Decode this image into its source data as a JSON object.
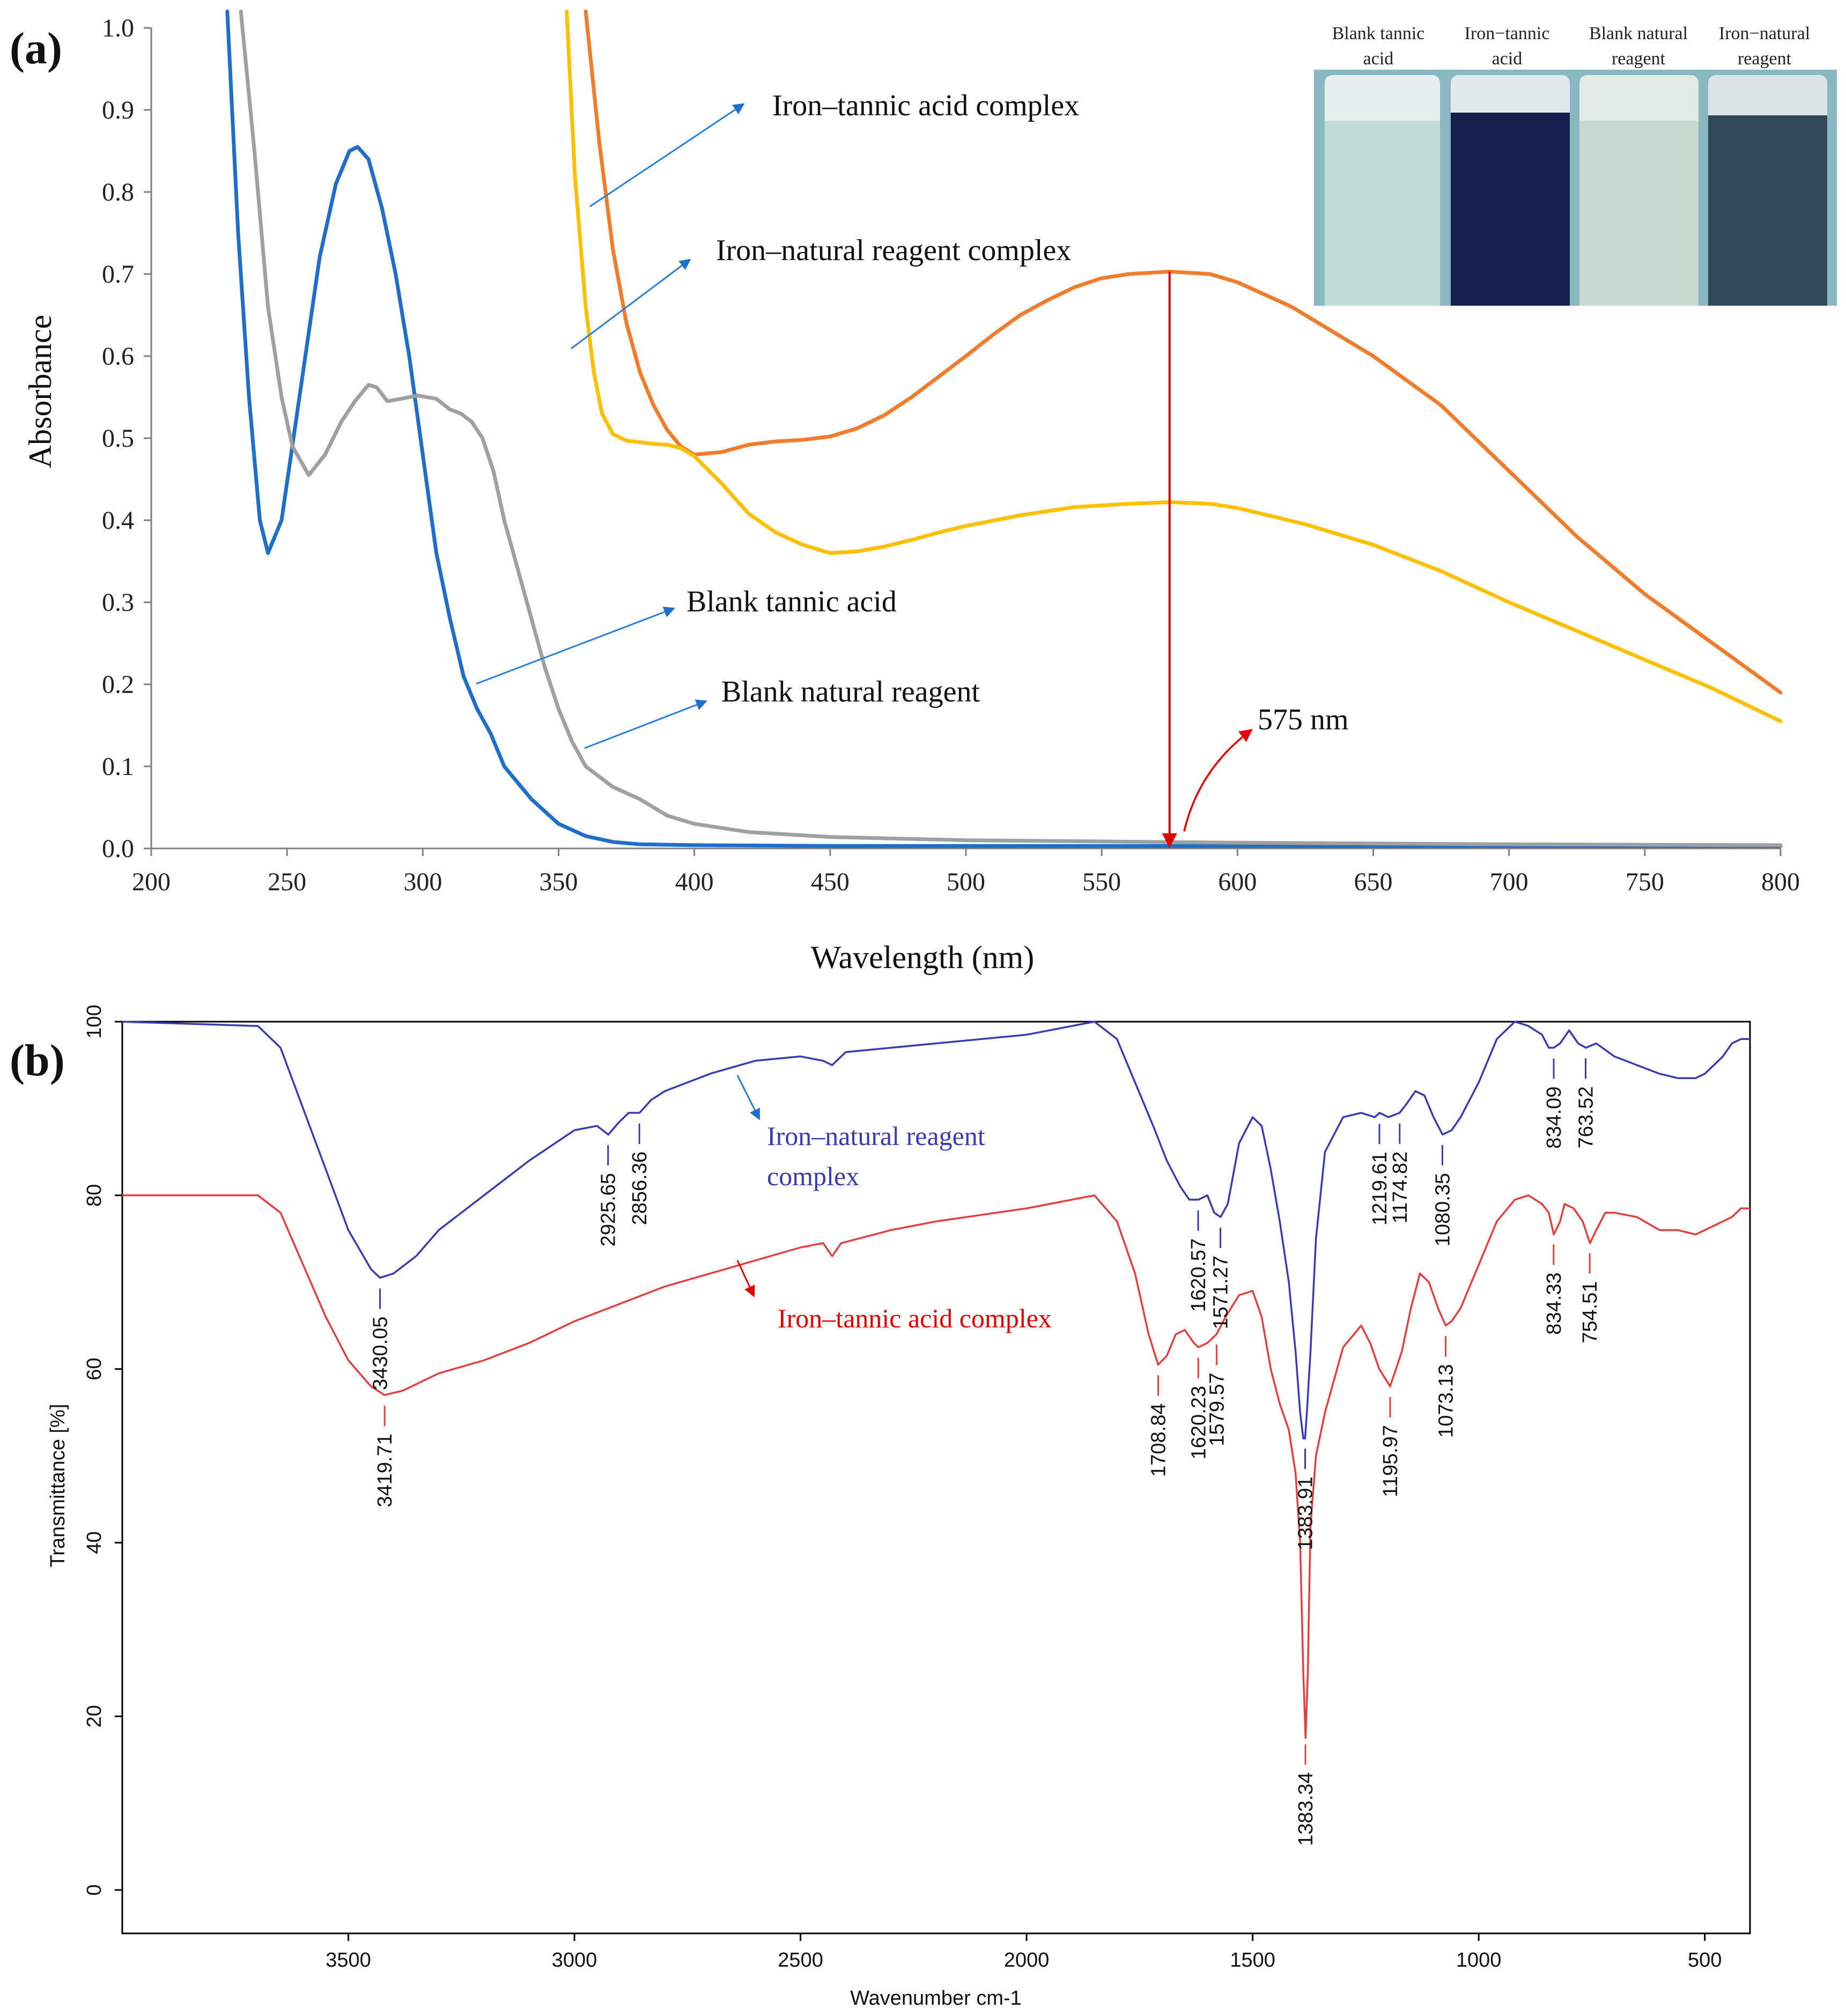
{
  "chart_data": [
    {
      "panel": "(a)",
      "type": "line",
      "xlabel": "Wavelength (nm)",
      "ylabel": "Absorbance",
      "xlim": [
        200,
        800
      ],
      "ylim": [
        0,
        1.0
      ],
      "xticks": [
        "200",
        "250",
        "300",
        "350",
        "400",
        "450",
        "500",
        "550",
        "600",
        "650",
        "700",
        "750",
        "800"
      ],
      "yticks": [
        "0.0",
        "0.1",
        "0.2",
        "0.3",
        "0.4",
        "0.5",
        "0.6",
        "0.7",
        "0.8",
        "0.9",
        "1.0"
      ],
      "series": [
        {
          "name": "Blank tannic acid",
          "color": "#1f6fc8",
          "x": [
            228,
            232,
            236,
            240,
            243,
            248,
            255,
            262,
            268,
            273,
            276,
            280,
            285,
            290,
            295,
            300,
            305,
            310,
            315,
            320,
            325,
            330,
            340,
            350,
            360,
            370,
            380,
            400,
            450,
            500,
            600,
            700,
            800
          ],
          "y": [
            1.02,
            0.75,
            0.55,
            0.4,
            0.36,
            0.4,
            0.56,
            0.72,
            0.81,
            0.85,
            0.855,
            0.84,
            0.78,
            0.7,
            0.6,
            0.48,
            0.36,
            0.28,
            0.21,
            0.17,
            0.14,
            0.1,
            0.06,
            0.03,
            0.015,
            0.008,
            0.005,
            0.004,
            0.003,
            0.003,
            0.003,
            0.003,
            0.003
          ]
        },
        {
          "name": "Blank natural reagent",
          "color": "#a0a0a0",
          "x": [
            233,
            238,
            243,
            248,
            252,
            258,
            264,
            270,
            275,
            280,
            283,
            287,
            292,
            298,
            305,
            310,
            314,
            318,
            322,
            326,
            330,
            335,
            340,
            345,
            350,
            355,
            360,
            370,
            380,
            390,
            400,
            420,
            450,
            500,
            600,
            700,
            800
          ],
          "y": [
            1.02,
            0.85,
            0.66,
            0.55,
            0.49,
            0.455,
            0.48,
            0.52,
            0.545,
            0.565,
            0.562,
            0.545,
            0.548,
            0.552,
            0.548,
            0.535,
            0.53,
            0.52,
            0.5,
            0.46,
            0.4,
            0.34,
            0.28,
            0.22,
            0.17,
            0.13,
            0.1,
            0.075,
            0.06,
            0.04,
            0.03,
            0.02,
            0.014,
            0.01,
            0.007,
            0.005,
            0.004
          ]
        },
        {
          "name": "Iron–tannic acid complex",
          "color": "#f07d2d",
          "x": [
            360,
            365,
            370,
            375,
            380,
            385,
            390,
            395,
            400,
            410,
            420,
            430,
            440,
            450,
            460,
            470,
            480,
            490,
            500,
            510,
            520,
            530,
            540,
            550,
            560,
            575,
            590,
            600,
            620,
            650,
            675,
            700,
            725,
            750,
            775,
            800
          ],
          "y": [
            1.02,
            0.86,
            0.73,
            0.64,
            0.58,
            0.54,
            0.51,
            0.49,
            0.48,
            0.483,
            0.492,
            0.496,
            0.498,
            0.502,
            0.512,
            0.528,
            0.55,
            0.575,
            0.6,
            0.626,
            0.65,
            0.668,
            0.684,
            0.695,
            0.7,
            0.703,
            0.7,
            0.69,
            0.66,
            0.6,
            0.54,
            0.46,
            0.38,
            0.31,
            0.25,
            0.19
          ]
        },
        {
          "name": "Iron–natural reagent complex",
          "color": "#ffc000",
          "x": [
            353,
            356,
            360,
            363,
            366,
            370,
            375,
            380,
            385,
            390,
            395,
            400,
            410,
            420,
            430,
            440,
            450,
            460,
            470,
            480,
            490,
            500,
            520,
            540,
            560,
            575,
            590,
            600,
            625,
            650,
            675,
            700,
            725,
            750,
            775,
            800
          ],
          "y": [
            1.02,
            0.82,
            0.66,
            0.58,
            0.53,
            0.505,
            0.497,
            0.495,
            0.493,
            0.492,
            0.488,
            0.478,
            0.445,
            0.408,
            0.385,
            0.37,
            0.36,
            0.362,
            0.368,
            0.376,
            0.385,
            0.393,
            0.406,
            0.416,
            0.42,
            0.422,
            0.42,
            0.415,
            0.395,
            0.37,
            0.338,
            0.3,
            0.265,
            0.23,
            0.195,
            0.155
          ]
        }
      ],
      "annotations": [
        "Iron–tannic acid complex",
        "Iron–natural reagent complex",
        "Blank tannic acid",
        "Blank natural reagent",
        "575 nm"
      ],
      "marker": {
        "wavelength": 575,
        "label": "575 nm"
      },
      "inset": {
        "labels": [
          "Blank tannic acid",
          "Iron−tannic acid",
          "Blank natural reagent",
          "Iron−natural reagent"
        ],
        "vial_colors": [
          "#b9d6d3",
          "#161e4c",
          "#c6d9cc",
          "#2f4452"
        ]
      }
    },
    {
      "panel": "(b)",
      "type": "line",
      "xlabel": "Wavenumber cm-1",
      "ylabel": "Transmittance [%]",
      "xlim": [
        4000,
        400
      ],
      "ylim": [
        -5,
        100
      ],
      "xticks": [
        "3500",
        "3000",
        "2500",
        "2000",
        "1500",
        "1000",
        "500"
      ],
      "yticks": [
        "0",
        "20",
        "40",
        "60",
        "80",
        "100"
      ],
      "series": [
        {
          "name": "Iron–natural reagent complex",
          "color": "#3b3bb0",
          "x": [
            4000,
            3700,
            3650,
            3600,
            3550,
            3500,
            3450,
            3430,
            3400,
            3350,
            3300,
            3200,
            3100,
            3000,
            2950,
            2925,
            2900,
            2880,
            2856,
            2830,
            2800,
            2700,
            2600,
            2500,
            2450,
            2430,
            2400,
            2300,
            2200,
            2000,
            1850,
            1800,
            1760,
            1720,
            1690,
            1660,
            1640,
            1620,
            1600,
            1585,
            1571,
            1555,
            1530,
            1500,
            1480,
            1460,
            1440,
            1420,
            1405,
            1395,
            1388,
            1384,
            1380,
            1372,
            1360,
            1340,
            1300,
            1260,
            1230,
            1219,
            1200,
            1175,
            1160,
            1140,
            1120,
            1100,
            1080,
            1060,
            1040,
            1000,
            960,
            920,
            890,
            860,
            845,
            834,
            820,
            800,
            780,
            763,
            740,
            700,
            650,
            600,
            560,
            520,
            500,
            480,
            460,
            440,
            420,
            400
          ],
          "y": [
            100,
            99.5,
            97,
            90,
            83,
            76,
            71.5,
            70.5,
            71,
            73,
            76,
            80,
            84,
            87.5,
            88,
            87,
            88.5,
            89.5,
            89.5,
            91,
            92,
            94,
            95.5,
            96,
            95.5,
            95,
            96.5,
            97,
            97.5,
            98.5,
            100,
            98,
            93,
            88,
            84,
            81,
            79.5,
            79.5,
            80,
            78,
            77.5,
            79,
            86,
            89,
            88,
            83,
            77,
            70,
            62,
            55,
            52,
            52,
            55,
            62,
            75,
            85,
            89,
            89.5,
            89,
            89.5,
            89,
            89.5,
            90.5,
            92,
            91.5,
            89,
            87,
            87.5,
            89,
            93,
            98,
            100,
            99.5,
            98.5,
            97,
            97,
            97.5,
            99,
            97.5,
            97,
            97.5,
            96,
            95,
            94,
            93.5,
            93.5,
            94,
            95,
            96,
            97.5,
            98,
            98
          ]
        },
        {
          "name": "Iron–tannic acid complex",
          "color": "#e24040",
          "x": [
            4000,
            3700,
            3650,
            3600,
            3550,
            3500,
            3450,
            3420,
            3380,
            3300,
            3200,
            3100,
            3000,
            2900,
            2800,
            2700,
            2600,
            2500,
            2450,
            2430,
            2410,
            2300,
            2200,
            2000,
            1850,
            1800,
            1760,
            1730,
            1709,
            1690,
            1670,
            1650,
            1630,
            1620,
            1600,
            1580,
            1560,
            1530,
            1500,
            1480,
            1460,
            1440,
            1420,
            1405,
            1395,
            1388,
            1383,
            1378,
            1372,
            1360,
            1340,
            1300,
            1260,
            1240,
            1220,
            1196,
            1170,
            1150,
            1130,
            1110,
            1090,
            1073,
            1060,
            1040,
            1000,
            960,
            920,
            890,
            860,
            845,
            834,
            820,
            810,
            790,
            770,
            754,
            740,
            720,
            700,
            650,
            600,
            560,
            520,
            500,
            480,
            460,
            440,
            420,
            400
          ],
          "y": [
            80,
            80,
            78,
            72,
            66,
            61,
            58,
            57,
            57.5,
            59.5,
            61,
            63,
            65.5,
            67.5,
            69.5,
            71,
            72.5,
            74,
            74.5,
            73,
            74.5,
            76,
            77,
            78.5,
            80,
            77,
            71,
            64,
            60.5,
            61.5,
            64,
            64.5,
            63,
            62.5,
            63,
            64,
            66,
            68.5,
            69,
            66,
            60,
            56,
            53,
            48,
            40,
            25,
            17.5,
            25,
            42,
            50,
            55,
            62.5,
            65,
            63,
            60,
            58,
            62,
            67,
            71,
            70,
            67,
            65,
            65.5,
            67,
            72,
            77,
            79.5,
            80,
            79,
            78,
            75.5,
            77,
            79,
            78.5,
            77,
            74.5,
            76,
            78,
            78,
            77.5,
            76,
            76,
            75.5,
            76,
            76.5,
            77,
            77.5,
            78.5,
            78.5
          ]
        }
      ],
      "peak_labels_blue": [
        "3430.05",
        "2925.65",
        "2856.36",
        "1620.57",
        "1571.27",
        "1383.91",
        "1219.61",
        "1174.82",
        "1080.35",
        "834.09",
        "763.52"
      ],
      "peak_labels_red": [
        "3419.71",
        "1708.84",
        "1620.23",
        "1579.57",
        "1383.34",
        "1195.97",
        "1073.13",
        "834.33",
        "754.51"
      ],
      "annotations": [
        "Iron–natural reagent complex",
        "Iron–tannic acid complex"
      ]
    }
  ],
  "text": {
    "panel_a": "(a)",
    "panel_b": "(b)",
    "a_ann_iron_tannic": "Iron–tannic acid complex",
    "a_ann_iron_natural": "Iron–natural reagent complex",
    "a_ann_blank_tannic": "Blank tannic acid",
    "a_ann_blank_natural": "Blank natural reagent",
    "a_ann_575": "575 nm",
    "inset_1a": "Blank tannic",
    "inset_1b": "acid",
    "inset_2a": "Iron−tannic",
    "inset_2b": "acid",
    "inset_3a": "Blank natural",
    "inset_3b": "reagent",
    "inset_4a": "Iron−natural",
    "inset_4b": "reagent",
    "b_ann_blue_1": "Iron–natural reagent",
    "b_ann_blue_2": "complex",
    "b_ann_red": "Iron–tannic acid complex"
  }
}
